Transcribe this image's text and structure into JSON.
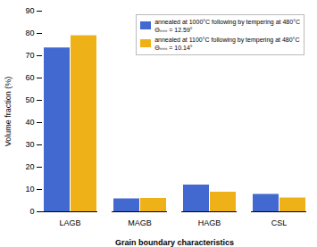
{
  "chart_data": {
    "type": "bar",
    "categories": [
      "LAGB",
      "MAGB",
      "HAGB",
      "CSL"
    ],
    "series": [
      {
        "name": "annealed at 1000°C following by tempering at 480°C\nΘₘₘ = 12.59°",
        "values": [
          73.5,
          5.8,
          12.0,
          7.8
        ]
      },
      {
        "name": "annealed at 1100°C following by tempering at 480°C\nΘₘₘ = 10.14°",
        "values": [
          79.0,
          6.0,
          8.8,
          6.2
        ]
      }
    ],
    "xlabel": "Grain boundary characteristics",
    "ylabel": "Volume fraction (%)",
    "ylim": [
      0,
      90
    ],
    "yticks": [
      0,
      10,
      20,
      30,
      40,
      50,
      60,
      70,
      80,
      90
    ],
    "legend": "upper right",
    "grid": false
  }
}
